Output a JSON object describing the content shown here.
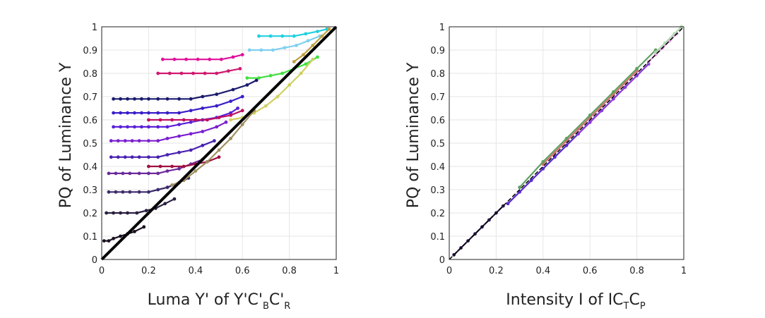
{
  "chart_data": [
    {
      "type": "scatter",
      "ylabel": "PQ of Luminance Y",
      "xlabel_parts": [
        "Luma Y' of Y'C'",
        "B",
        "C'",
        "R"
      ],
      "xlim": [
        0,
        1
      ],
      "ylim": [
        0,
        1
      ],
      "xticks": [
        "0",
        "0.2",
        "0.4",
        "0.6",
        "0.8",
        "1"
      ],
      "yticks": [
        "0",
        "0.1",
        "0.2",
        "0.3",
        "0.4",
        "0.5",
        "0.6",
        "0.7",
        "0.8",
        "0.9",
        "1"
      ],
      "grid": true,
      "reference_line": {
        "x": [
          0,
          1
        ],
        "y": [
          0,
          1
        ],
        "color": "#000000"
      },
      "series": [
        {
          "color": "#1a1a6e",
          "x": [
            0.05,
            0.08,
            0.11,
            0.14,
            0.17,
            0.2,
            0.24,
            0.28,
            0.33,
            0.38,
            0.43,
            0.49,
            0.56,
            0.62,
            0.66
          ],
          "y": [
            0.69,
            0.69,
            0.69,
            0.69,
            0.69,
            0.69,
            0.69,
            0.69,
            0.69,
            0.69,
            0.7,
            0.71,
            0.73,
            0.75,
            0.77
          ]
        },
        {
          "color": "#3a1fc8",
          "x": [
            0.05,
            0.08,
            0.11,
            0.14,
            0.17,
            0.2,
            0.24,
            0.28,
            0.33,
            0.38,
            0.43,
            0.49,
            0.55,
            0.6
          ],
          "y": [
            0.63,
            0.63,
            0.63,
            0.63,
            0.63,
            0.63,
            0.63,
            0.63,
            0.63,
            0.64,
            0.65,
            0.66,
            0.68,
            0.7
          ]
        },
        {
          "color": "#5a20d8",
          "x": [
            0.05,
            0.08,
            0.11,
            0.14,
            0.17,
            0.2,
            0.24,
            0.28,
            0.33,
            0.38,
            0.43,
            0.49,
            0.55,
            0.58
          ],
          "y": [
            0.57,
            0.57,
            0.57,
            0.57,
            0.57,
            0.57,
            0.57,
            0.57,
            0.58,
            0.59,
            0.6,
            0.61,
            0.63,
            0.65
          ]
        },
        {
          "color": "#7b1fcf",
          "x": [
            0.04,
            0.07,
            0.1,
            0.13,
            0.16,
            0.2,
            0.24,
            0.28,
            0.33,
            0.38,
            0.43,
            0.49,
            0.53
          ],
          "y": [
            0.51,
            0.51,
            0.51,
            0.51,
            0.51,
            0.51,
            0.51,
            0.52,
            0.53,
            0.54,
            0.55,
            0.57,
            0.59
          ]
        },
        {
          "color": "#4a23b0",
          "x": [
            0.04,
            0.07,
            0.1,
            0.13,
            0.16,
            0.2,
            0.24,
            0.28,
            0.33,
            0.38,
            0.43,
            0.48
          ],
          "y": [
            0.44,
            0.44,
            0.44,
            0.44,
            0.44,
            0.44,
            0.44,
            0.45,
            0.46,
            0.47,
            0.49,
            0.51
          ]
        },
        {
          "color": "#6a2a9a",
          "x": [
            0.03,
            0.06,
            0.09,
            0.12,
            0.16,
            0.2,
            0.24,
            0.28,
            0.33,
            0.38,
            0.43
          ],
          "y": [
            0.37,
            0.37,
            0.37,
            0.37,
            0.37,
            0.37,
            0.37,
            0.38,
            0.39,
            0.41,
            0.43
          ]
        },
        {
          "color": "#3b2a6a",
          "x": [
            0.03,
            0.06,
            0.09,
            0.12,
            0.16,
            0.2,
            0.24,
            0.28,
            0.33,
            0.37
          ],
          "y": [
            0.29,
            0.29,
            0.29,
            0.29,
            0.29,
            0.29,
            0.3,
            0.31,
            0.33,
            0.35
          ]
        },
        {
          "color": "#2a2040",
          "x": [
            0.02,
            0.05,
            0.08,
            0.11,
            0.15,
            0.19,
            0.23,
            0.27,
            0.31
          ],
          "y": [
            0.2,
            0.2,
            0.2,
            0.2,
            0.2,
            0.21,
            0.22,
            0.24,
            0.26
          ]
        },
        {
          "color": "#1a1020",
          "x": [
            0.01,
            0.03,
            0.05,
            0.08,
            0.11,
            0.14,
            0.18
          ],
          "y": [
            0.08,
            0.08,
            0.09,
            0.1,
            0.11,
            0.12,
            0.14
          ]
        },
        {
          "color": "#e0109a",
          "x": [
            0.26,
            0.31,
            0.36,
            0.41,
            0.46,
            0.51,
            0.56,
            0.6
          ],
          "y": [
            0.86,
            0.86,
            0.86,
            0.86,
            0.86,
            0.86,
            0.87,
            0.88
          ]
        },
        {
          "color": "#d01870",
          "x": [
            0.24,
            0.29,
            0.34,
            0.39,
            0.44,
            0.49,
            0.54,
            0.59
          ],
          "y": [
            0.8,
            0.8,
            0.8,
            0.8,
            0.8,
            0.8,
            0.81,
            0.82
          ]
        },
        {
          "color": "#c01060",
          "x": [
            0.2,
            0.25,
            0.3,
            0.35,
            0.4,
            0.45,
            0.5,
            0.55,
            0.6
          ],
          "y": [
            0.6,
            0.6,
            0.6,
            0.6,
            0.6,
            0.6,
            0.61,
            0.62,
            0.64
          ]
        },
        {
          "color": "#a01040",
          "x": [
            0.2,
            0.25,
            0.3,
            0.35,
            0.4,
            0.45,
            0.5
          ],
          "y": [
            0.4,
            0.4,
            0.4,
            0.4,
            0.41,
            0.42,
            0.44
          ]
        },
        {
          "color": "#40e040",
          "x": [
            0.62,
            0.67,
            0.72,
            0.77,
            0.82,
            0.87,
            0.92
          ],
          "y": [
            0.78,
            0.78,
            0.79,
            0.8,
            0.82,
            0.84,
            0.87
          ]
        },
        {
          "color": "#20d0e0",
          "x": [
            0.67,
            0.72,
            0.77,
            0.82,
            0.87,
            0.92,
            0.96
          ],
          "y": [
            0.96,
            0.96,
            0.96,
            0.96,
            0.97,
            0.98,
            0.99
          ]
        },
        {
          "color": "#80d0f0",
          "x": [
            0.63,
            0.68,
            0.73,
            0.78,
            0.83,
            0.88,
            0.93
          ],
          "y": [
            0.9,
            0.9,
            0.9,
            0.91,
            0.92,
            0.94,
            0.96
          ]
        },
        {
          "color": "#d0d060",
          "x": [
            0.55,
            0.6,
            0.65,
            0.7,
            0.75,
            0.8,
            0.85,
            0.9
          ],
          "y": [
            0.6,
            0.61,
            0.63,
            0.66,
            0.7,
            0.75,
            0.8,
            0.86
          ]
        },
        {
          "color": "#a09060",
          "x": [
            0.3,
            0.35,
            0.4,
            0.45,
            0.5,
            0.55,
            0.6,
            0.65
          ],
          "y": [
            0.32,
            0.34,
            0.38,
            0.42,
            0.47,
            0.52,
            0.58,
            0.64
          ]
        },
        {
          "color": "#c0a040",
          "x": [
            0.82,
            0.86,
            0.9,
            0.94,
            0.97
          ],
          "y": [
            0.85,
            0.88,
            0.92,
            0.96,
            0.99
          ]
        }
      ]
    },
    {
      "type": "scatter",
      "ylabel": "PQ of Luminance Y",
      "xlabel_parts": [
        "Intensity I of IC",
        "T",
        "C",
        "P"
      ],
      "xlim": [
        0,
        1
      ],
      "ylim": [
        0,
        1
      ],
      "xticks": [
        "0",
        "0.2",
        "0.4",
        "0.6",
        "0.8",
        "1"
      ],
      "yticks": [
        "0",
        "0.1",
        "0.2",
        "0.3",
        "0.4",
        "0.5",
        "0.6",
        "0.7",
        "0.8",
        "0.9",
        "1"
      ],
      "grid": true,
      "reference_line": {
        "x": [
          0,
          1
        ],
        "y": [
          0,
          1
        ],
        "color": "#000000"
      },
      "series": [
        {
          "color": "#2a1a4a",
          "x": [
            0.02,
            0.05,
            0.08,
            0.11,
            0.14,
            0.17,
            0.2,
            0.23
          ],
          "y": [
            0.02,
            0.05,
            0.08,
            0.11,
            0.14,
            0.17,
            0.2,
            0.23
          ]
        },
        {
          "color": "#5a2ad0",
          "x": [
            0.25,
            0.3,
            0.35,
            0.4,
            0.45,
            0.5,
            0.55,
            0.6,
            0.65
          ],
          "y": [
            0.24,
            0.29,
            0.34,
            0.39,
            0.44,
            0.49,
            0.54,
            0.59,
            0.64
          ]
        },
        {
          "color": "#8a3ae0",
          "x": [
            0.55,
            0.6,
            0.65,
            0.7,
            0.75,
            0.8,
            0.85
          ],
          "y": [
            0.54,
            0.59,
            0.64,
            0.69,
            0.74,
            0.79,
            0.84
          ]
        },
        {
          "color": "#d07070",
          "x": [
            0.4,
            0.45,
            0.5,
            0.55,
            0.6,
            0.65,
            0.7,
            0.75,
            0.8
          ],
          "y": [
            0.41,
            0.46,
            0.51,
            0.56,
            0.61,
            0.66,
            0.71,
            0.76,
            0.81
          ]
        },
        {
          "color": "#60a060",
          "x": [
            0.3,
            0.4,
            0.5,
            0.6,
            0.7,
            0.8,
            0.88
          ],
          "y": [
            0.31,
            0.42,
            0.52,
            0.62,
            0.72,
            0.82,
            0.9
          ]
        },
        {
          "color": "#e8a0e8",
          "x": [
            0.85,
            0.88,
            0.91,
            0.94,
            0.97
          ],
          "y": [
            0.85,
            0.88,
            0.91,
            0.94,
            0.97
          ]
        },
        {
          "color": "#b0d8b0",
          "x": [
            0.88,
            0.92,
            0.96,
            0.99
          ],
          "y": [
            0.89,
            0.93,
            0.97,
            1.0
          ]
        }
      ]
    }
  ]
}
